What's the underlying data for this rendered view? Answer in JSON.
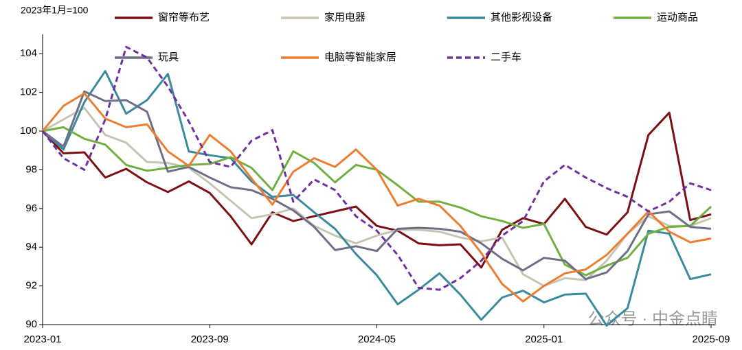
{
  "chart_data": {
    "type": "line",
    "subtitle": "2023年1月=100",
    "watermark": "公众号 · 中金点睛",
    "categories": [
      "2023-01",
      null,
      null,
      null,
      null,
      null,
      null,
      null,
      "2023-09",
      null,
      null,
      null,
      null,
      null,
      null,
      null,
      "2024-05",
      null,
      null,
      null,
      null,
      null,
      null,
      null,
      "2025-01",
      null,
      null,
      null,
      null,
      null,
      null,
      null,
      "2025-09"
    ],
    "ylim": [
      90,
      105
    ],
    "yticks": [
      90,
      92,
      94,
      96,
      98,
      100,
      102,
      104
    ],
    "grid": false,
    "series": [
      {
        "name": "窗帘等布艺",
        "color": "#7b0f14",
        "values": [
          100,
          98.85,
          98.9,
          97.6,
          98.05,
          97.35,
          96.85,
          97.4,
          96.8,
          95.6,
          94.15,
          95.8,
          95.35,
          95.6,
          95.85,
          96.1,
          95.1,
          94.85,
          94.2,
          94.1,
          94.15,
          92.95,
          94.9,
          95.5,
          95.2,
          96.5,
          95.05,
          94.65,
          95.8,
          99.8,
          100.95,
          95.4,
          95.7
        ]
      },
      {
        "name": "家用电器",
        "color": "#c8c4b4",
        "values": [
          100,
          100.6,
          101.2,
          99.8,
          99.4,
          98.4,
          98.35,
          98.1,
          97.3,
          96.4,
          95.5,
          95.7,
          96.0,
          95.1,
          94.6,
          94.2,
          94.6,
          94.9,
          94.9,
          94.8,
          94.5,
          94.3,
          94.5,
          92.6,
          92.0,
          92.4,
          92.3,
          93.3,
          94.7,
          95.6,
          95.1,
          95.1,
          95.5
        ]
      },
      {
        "name": "其他影视设备",
        "color": "#3a8a9e",
        "values": [
          100,
          99.05,
          101.5,
          103.1,
          100.9,
          101.6,
          102.95,
          98.95,
          98.75,
          98.6,
          97.4,
          96.6,
          96.7,
          95.8,
          94.95,
          93.65,
          92.55,
          91.05,
          91.8,
          92.65,
          91.55,
          90.25,
          91.4,
          91.75,
          91.15,
          91.55,
          91.6,
          89.95,
          90.85,
          94.85,
          94.7,
          92.35,
          92.6
        ]
      },
      {
        "name": "运动商品",
        "color": "#6fb041",
        "values": [
          100,
          100.2,
          99.6,
          99.3,
          98.25,
          97.95,
          98.1,
          98.25,
          98.3,
          98.65,
          98.1,
          96.95,
          98.95,
          98.35,
          97.35,
          98.25,
          98.0,
          97.2,
          96.35,
          96.35,
          96.05,
          95.6,
          95.35,
          95.0,
          95.2,
          93.1,
          92.55,
          93.05,
          93.45,
          94.7,
          95.05,
          95.1,
          96.1
        ]
      },
      {
        "name": "玩具",
        "color": "#6d6f89",
        "values": [
          100,
          99.2,
          102.05,
          101.55,
          101.6,
          101.0,
          97.9,
          98.15,
          97.6,
          97.1,
          96.95,
          96.5,
          95.9,
          95.05,
          93.85,
          94.05,
          93.8,
          94.95,
          95.0,
          94.95,
          94.8,
          94.2,
          93.4,
          92.8,
          93.45,
          93.3,
          92.35,
          92.7,
          93.8,
          95.7,
          95.85,
          95.05,
          94.95
        ]
      },
      {
        "name": "电脑等智能家居",
        "color": "#ed7d31",
        "values": [
          100,
          101.3,
          101.95,
          100.65,
          100.2,
          100.35,
          98.95,
          98.2,
          99.8,
          98.95,
          97.55,
          96.2,
          97.9,
          98.6,
          98.15,
          99.05,
          98.0,
          96.15,
          96.5,
          96.15,
          95.1,
          93.7,
          92.1,
          91.2,
          92.0,
          92.65,
          92.85,
          93.6,
          94.7,
          95.85,
          94.8,
          94.25,
          94.45
        ]
      },
      {
        "name": "二手车",
        "color": "#7030a0",
        "dashed": true,
        "values": [
          100,
          98.6,
          98.0,
          100.6,
          104.35,
          103.8,
          102.3,
          100.5,
          98.4,
          98.15,
          99.5,
          100.05,
          96.35,
          97.5,
          96.95,
          95.6,
          94.85,
          93.6,
          91.9,
          91.8,
          92.4,
          93.3,
          94.6,
          95.35,
          97.4,
          98.25,
          97.6,
          97.05,
          96.6,
          95.85,
          96.35,
          97.3,
          96.95
        ]
      }
    ]
  }
}
